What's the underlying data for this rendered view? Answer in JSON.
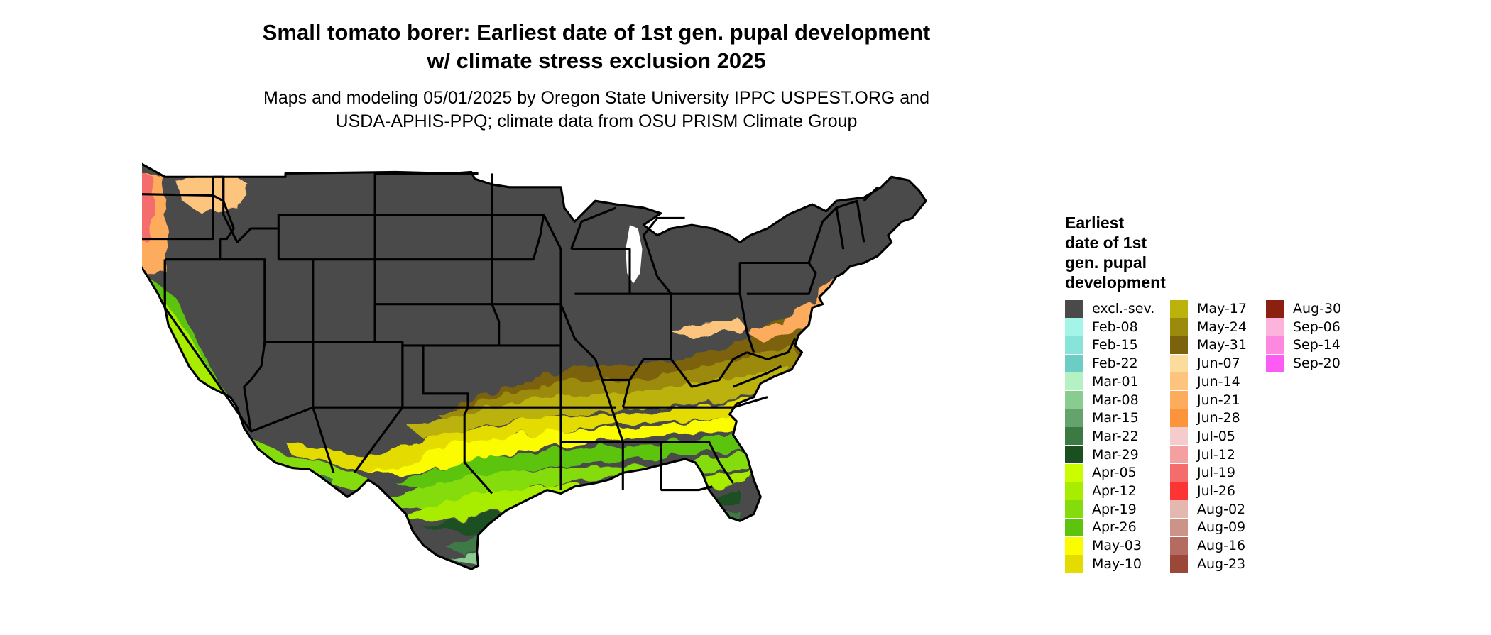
{
  "title_line1": "Small tomato borer: Earliest date of 1st gen. pupal development",
  "title_line2": "w/ climate stress exclusion 2025",
  "subtitle_line1": "Maps and modeling 05/01/2025 by Oregon State University IPPC USPEST.ORG and",
  "subtitle_line2": "USDA-APHIS-PPQ; climate data from OSU PRISM Climate Group",
  "legend": {
    "title_lines": [
      "Earliest",
      "date of 1st",
      "gen. pupal",
      "development"
    ],
    "columns": [
      [
        {
          "label": "excl.-sev.",
          "color": "#4a4a4a"
        },
        {
          "label": "Feb-08",
          "color": "#a4f4e8"
        },
        {
          "label": "Feb-15",
          "color": "#88e4d8"
        },
        {
          "label": "Feb-22",
          "color": "#6ccdc4"
        },
        {
          "label": "Mar-01",
          "color": "#b4f2c4"
        },
        {
          "label": "Mar-08",
          "color": "#88cc90"
        },
        {
          "label": "Mar-15",
          "color": "#64a46c"
        },
        {
          "label": "Mar-22",
          "color": "#3c7a44"
        },
        {
          "label": "Mar-29",
          "color": "#1a5020"
        },
        {
          "label": "Apr-05",
          "color": "#ccfc00"
        },
        {
          "label": "Apr-12",
          "color": "#a8ec00"
        },
        {
          "label": "Apr-19",
          "color": "#84dc0c"
        },
        {
          "label": "Apr-26",
          "color": "#5cc40c"
        },
        {
          "label": "May-03",
          "color": "#fcfc00"
        },
        {
          "label": "May-10",
          "color": "#e4dc00"
        }
      ],
      [
        {
          "label": "May-17",
          "color": "#bcb20c"
        },
        {
          "label": "May-24",
          "color": "#9c8a0c"
        },
        {
          "label": "May-31",
          "color": "#7c620c"
        },
        {
          "label": "Jun-07",
          "color": "#fcdc9c"
        },
        {
          "label": "Jun-14",
          "color": "#fcc47c"
        },
        {
          "label": "Jun-21",
          "color": "#fcac5c"
        },
        {
          "label": "Jun-28",
          "color": "#fc943c"
        },
        {
          "label": "Jul-05",
          "color": "#f4cccc"
        },
        {
          "label": "Jul-12",
          "color": "#f4a0a0"
        },
        {
          "label": "Jul-19",
          "color": "#f46c6c"
        },
        {
          "label": "Jul-26",
          "color": "#fc3434"
        },
        {
          "label": "Aug-02",
          "color": "#e4b8b0"
        },
        {
          "label": "Aug-09",
          "color": "#cc9488"
        },
        {
          "label": "Aug-16",
          "color": "#b46c60"
        },
        {
          "label": "Aug-23",
          "color": "#9c4838"
        }
      ],
      [
        {
          "label": "Aug-30",
          "color": "#8c2010"
        },
        {
          "label": "Sep-06",
          "color": "#fcb4dc"
        },
        {
          "label": "Sep-14",
          "color": "#fc88e0"
        },
        {
          "label": "Sep-20",
          "color": "#fc5cf4"
        }
      ]
    ]
  },
  "map_colors": {
    "excluded": "#4a4a4a",
    "state_border": "#000000"
  }
}
